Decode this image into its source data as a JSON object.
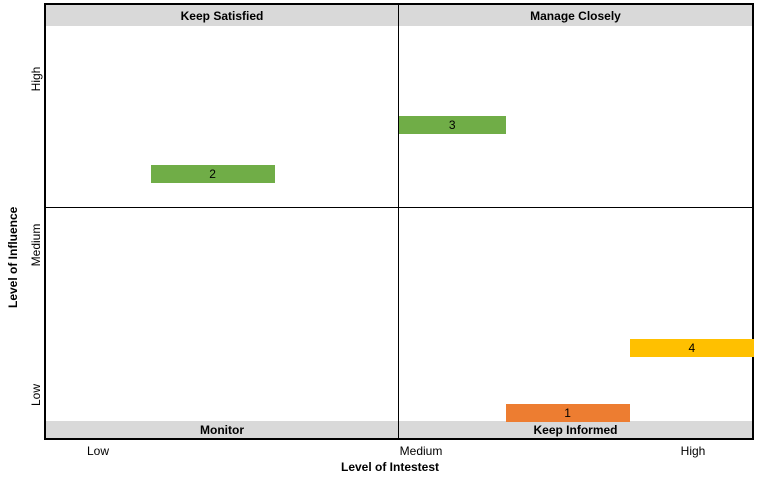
{
  "chart_data": {
    "type": "bar",
    "title": "",
    "xlabel": "Level of Intestest",
    "ylabel": "Level of Influence",
    "x_ticks": [
      "Low",
      "Medium",
      "High"
    ],
    "y_ticks": [
      "Low",
      "Medium",
      "High"
    ],
    "quadrants": {
      "top_left": "Keep Satisfied",
      "top_right": "Manage Closely",
      "bottom_left": "Monitor",
      "bottom_right": "Keep Informed"
    },
    "xlim": [
      0,
      2
    ],
    "ylim": [
      0,
      2
    ],
    "grid": false,
    "items": [
      {
        "label": "1",
        "x_start": 1.3,
        "x_end": 1.65,
        "y": 0.04,
        "color": "#ed7d31"
      },
      {
        "label": "2",
        "x_start": 0.3,
        "x_end": 0.65,
        "y": 1.25,
        "color": "#70ad47"
      },
      {
        "label": "3",
        "x_start": 1.0,
        "x_end": 1.3,
        "y": 1.5,
        "color": "#70ad47"
      },
      {
        "label": "4",
        "x_start": 1.65,
        "x_end": 2.0,
        "y": 0.37,
        "color": "#ffc000"
      }
    ],
    "colors": {
      "band": "#d9d9d9",
      "border": "#000000"
    }
  }
}
